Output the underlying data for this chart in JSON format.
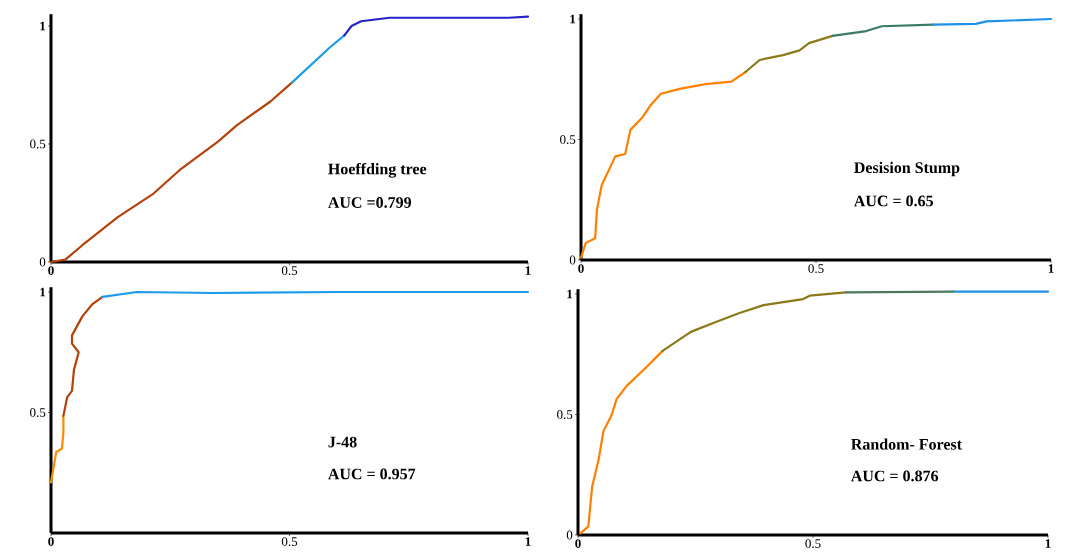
{
  "chart_data": [
    {
      "type": "line",
      "annotations": [
        "Hoeffding tree",
        "AUC =0.799"
      ],
      "xlim": [
        0,
        1
      ],
      "ylim": [
        0,
        1.05
      ],
      "xticks": [
        0,
        0.5,
        1
      ],
      "yticks": [
        0,
        0.5,
        1
      ],
      "series": [
        {
          "color": "#b5420a",
          "x": [
            0,
            0.03,
            0.065,
            0.14,
            0.215,
            0.27,
            0.35,
            0.39,
            0.46,
            0.505
          ],
          "values": [
            0,
            0.01,
            0.07,
            0.19,
            0.29,
            0.39,
            0.51,
            0.58,
            0.68,
            0.76
          ]
        },
        {
          "color": "#1e9be8",
          "x": [
            0.505,
            0.585,
            0.615
          ],
          "values": [
            0.76,
            0.91,
            0.96
          ]
        },
        {
          "color": "#2424c8",
          "x": [
            0.615,
            0.63,
            0.65,
            0.71,
            0.96,
            1.0
          ],
          "values": [
            0.96,
            1.0,
            1.02,
            1.035,
            1.035,
            1.04
          ]
        }
      ]
    },
    {
      "type": "line",
      "annotations": [
        "Desision Stump",
        "AUC = 0.65"
      ],
      "xlim": [
        0,
        1
      ],
      "ylim": [
        0,
        1.02
      ],
      "xticks": [
        0,
        0.5,
        1
      ],
      "yticks": [
        0,
        0.5,
        1
      ],
      "series": [
        {
          "color": "#ff8000",
          "x": [
            0,
            0.01,
            0.03,
            0.034,
            0.044,
            0.073,
            0.094,
            0.105,
            0.13,
            0.147,
            0.17,
            0.21,
            0.265,
            0.32,
            0.35
          ],
          "values": [
            0.01,
            0.07,
            0.09,
            0.21,
            0.31,
            0.43,
            0.44,
            0.54,
            0.59,
            0.64,
            0.69,
            0.71,
            0.73,
            0.74,
            0.78
          ]
        },
        {
          "color": "#8a7a1a",
          "x": [
            0.35,
            0.38,
            0.43,
            0.465,
            0.485,
            0.535
          ],
          "values": [
            0.78,
            0.83,
            0.85,
            0.87,
            0.9,
            0.93
          ]
        },
        {
          "color": "#3a7a6a",
          "x": [
            0.535,
            0.607,
            0.64,
            0.75
          ],
          "values": [
            0.93,
            0.95,
            0.97,
            0.977
          ]
        },
        {
          "color": "#1e90e8",
          "x": [
            0.75,
            0.84,
            0.863,
            1.0
          ],
          "values": [
            0.977,
            0.98,
            0.99,
            1.0
          ]
        }
      ]
    },
    {
      "type": "line",
      "annotations": [
        "J-48",
        "AUC = 0.957"
      ],
      "xlim": [
        0,
        1
      ],
      "ylim": [
        0,
        1.02
      ],
      "xticks": [
        0,
        0.5,
        1
      ],
      "yticks": [
        0.5,
        1
      ],
      "series": [
        {
          "color": "#ff8c00",
          "x": [
            0,
            0.011,
            0.023,
            0.026,
            0.026
          ],
          "values": [
            0.21,
            0.336,
            0.35,
            0.42,
            0.486
          ]
        },
        {
          "color": "#b5420a",
          "x": [
            0.026,
            0.034,
            0.044,
            0.048,
            0.058,
            0.044,
            0.044,
            0.066,
            0.087,
            0.108
          ],
          "values": [
            0.486,
            0.564,
            0.59,
            0.676,
            0.75,
            0.786,
            0.82,
            0.9,
            0.95,
            0.98
          ]
        },
        {
          "color": "#1e9be8",
          "x": [
            0.108,
            0.18,
            0.34,
            0.607,
            1.0
          ],
          "values": [
            0.98,
            1.0,
            0.996,
            1.0,
            1.0
          ]
        }
      ]
    },
    {
      "type": "line",
      "annotations": [
        "Random- Forest",
        "AUC = 0.876"
      ],
      "xlim": [
        0,
        1
      ],
      "ylim": [
        0,
        1.02
      ],
      "xticks": [
        0,
        0.5,
        1
      ],
      "yticks": [
        0,
        0.5,
        1
      ],
      "series": [
        {
          "color": "#ff8000",
          "x": [
            0.005,
            0.022,
            0.03,
            0.044,
            0.054,
            0.072,
            0.082,
            0.104,
            0.142,
            0.18
          ],
          "values": [
            0.007,
            0.036,
            0.2,
            0.314,
            0.43,
            0.5,
            0.564,
            0.62,
            0.69,
            0.764
          ]
        },
        {
          "color": "#8a7a1a",
          "x": [
            0.18,
            0.24,
            0.296,
            0.342,
            0.395,
            0.479,
            0.493,
            0.57
          ],
          "values": [
            0.764,
            0.843,
            0.886,
            0.92,
            0.954,
            0.979,
            0.993,
            1.007
          ]
        },
        {
          "color": "#4a7a5a",
          "x": [
            0.57,
            0.8
          ],
          "values": [
            1.007,
            1.01
          ]
        },
        {
          "color": "#1e90e8",
          "x": [
            0.8,
            1.0
          ],
          "values": [
            1.01,
            1.01
          ]
        }
      ]
    }
  ]
}
